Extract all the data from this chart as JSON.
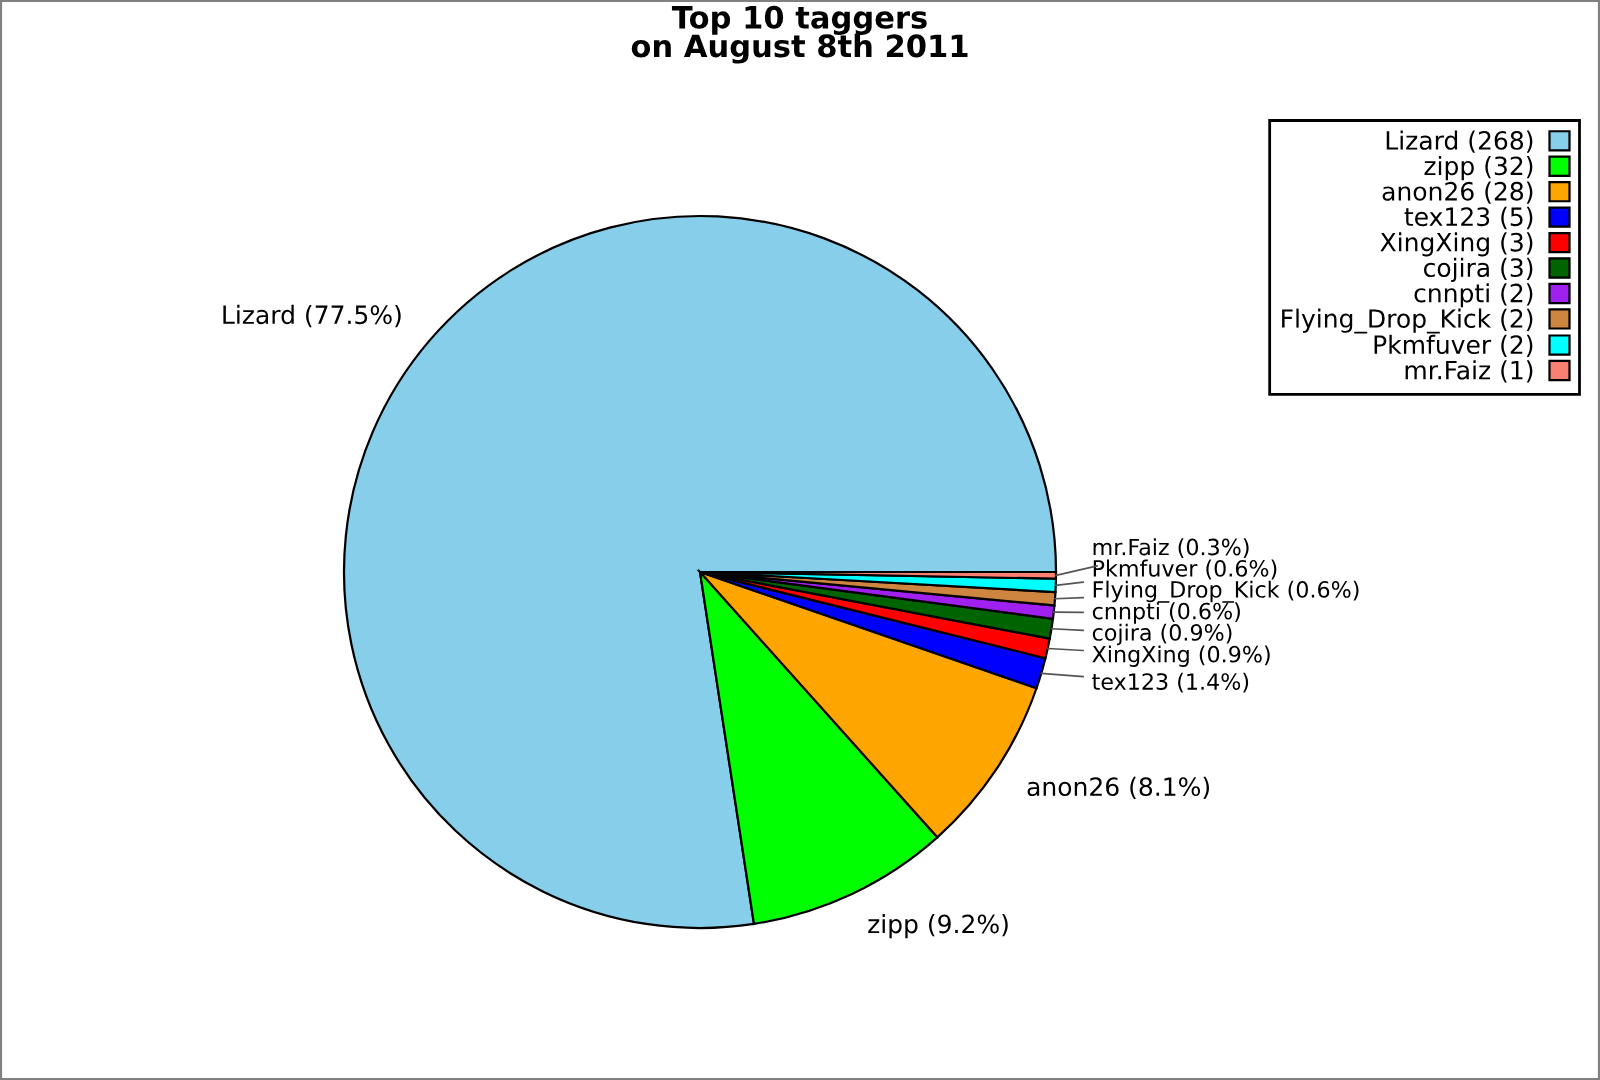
{
  "chart_data": {
    "type": "pie",
    "title": "Top 10 taggers\non August 8th 2011",
    "categories": [
      "Lizard (268)",
      "zipp (32)",
      "anon26 (28)",
      "tex123 (5)",
      "XingXing (3)",
      "cojira (3)",
      "cnnpti (2)",
      "Flying_Drop_Kick (2)",
      "Pkmfuver (2)",
      "mr.Faiz (1)"
    ],
    "values": [
      77.5,
      9.2,
      8.1,
      1.4,
      0.9,
      0.9,
      0.6,
      0.6,
      0.6,
      0.3
    ],
    "value_labels": [
      "Lizard (77.5%)",
      "zipp (9.2%)",
      "anon26 (8.1%)",
      "tex123 (1.4%)",
      "XingXing (0.9%)",
      "cojira (0.9%)",
      "cnnpti (0.6%)",
      "Flying_Drop_Kick (0.6%)",
      "Pkmfuver (0.6%)",
      "mr.Faiz (0.3%)"
    ],
    "colors": [
      "#87ceeb",
      "#00ff00",
      "#ffa500",
      "#0000ff",
      "#ff0000",
      "#006400",
      "#a020f0",
      "#cd853f",
      "#00ffff",
      "#fa8072"
    ],
    "legend": "top right"
  }
}
